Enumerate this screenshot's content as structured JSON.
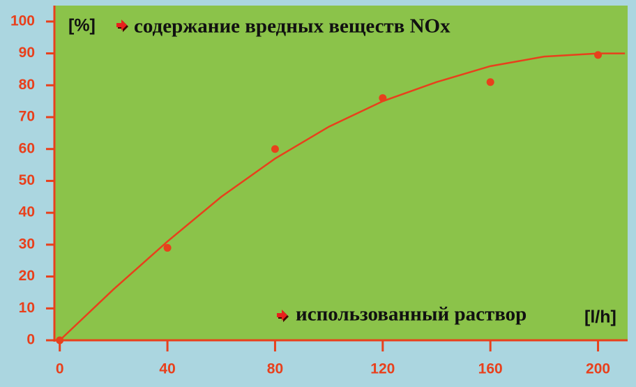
{
  "chart_data": {
    "type": "scatter",
    "unit_label": "[%]",
    "y_label": "содержание вредных веществ NOx",
    "x_label": "использованный раствор",
    "x_unit_label": "[l/h]",
    "series": [
      {
        "style": "markers",
        "color": "#e8401c",
        "x": [
          0,
          40,
          80,
          120,
          160,
          200
        ],
        "values": [
          0,
          29,
          60,
          76,
          81,
          89.5
        ]
      },
      {
        "style": "line",
        "color": "#e8401c",
        "x": [
          0,
          20,
          40,
          60,
          80,
          100,
          120,
          140,
          160,
          180,
          200,
          210
        ],
        "values": [
          0,
          16,
          31,
          45,
          57,
          67,
          75,
          81,
          86,
          89,
          90,
          90
        ]
      }
    ],
    "xlim": [
      -2,
      211
    ],
    "ylim": [
      0,
      105
    ],
    "xticks": [
      0,
      40,
      80,
      120,
      160,
      200
    ],
    "yticks": [
      0,
      10,
      20,
      30,
      40,
      50,
      60,
      70,
      80,
      90,
      100
    ],
    "background": "#8bc34a",
    "axis_color": "#e8401c"
  }
}
